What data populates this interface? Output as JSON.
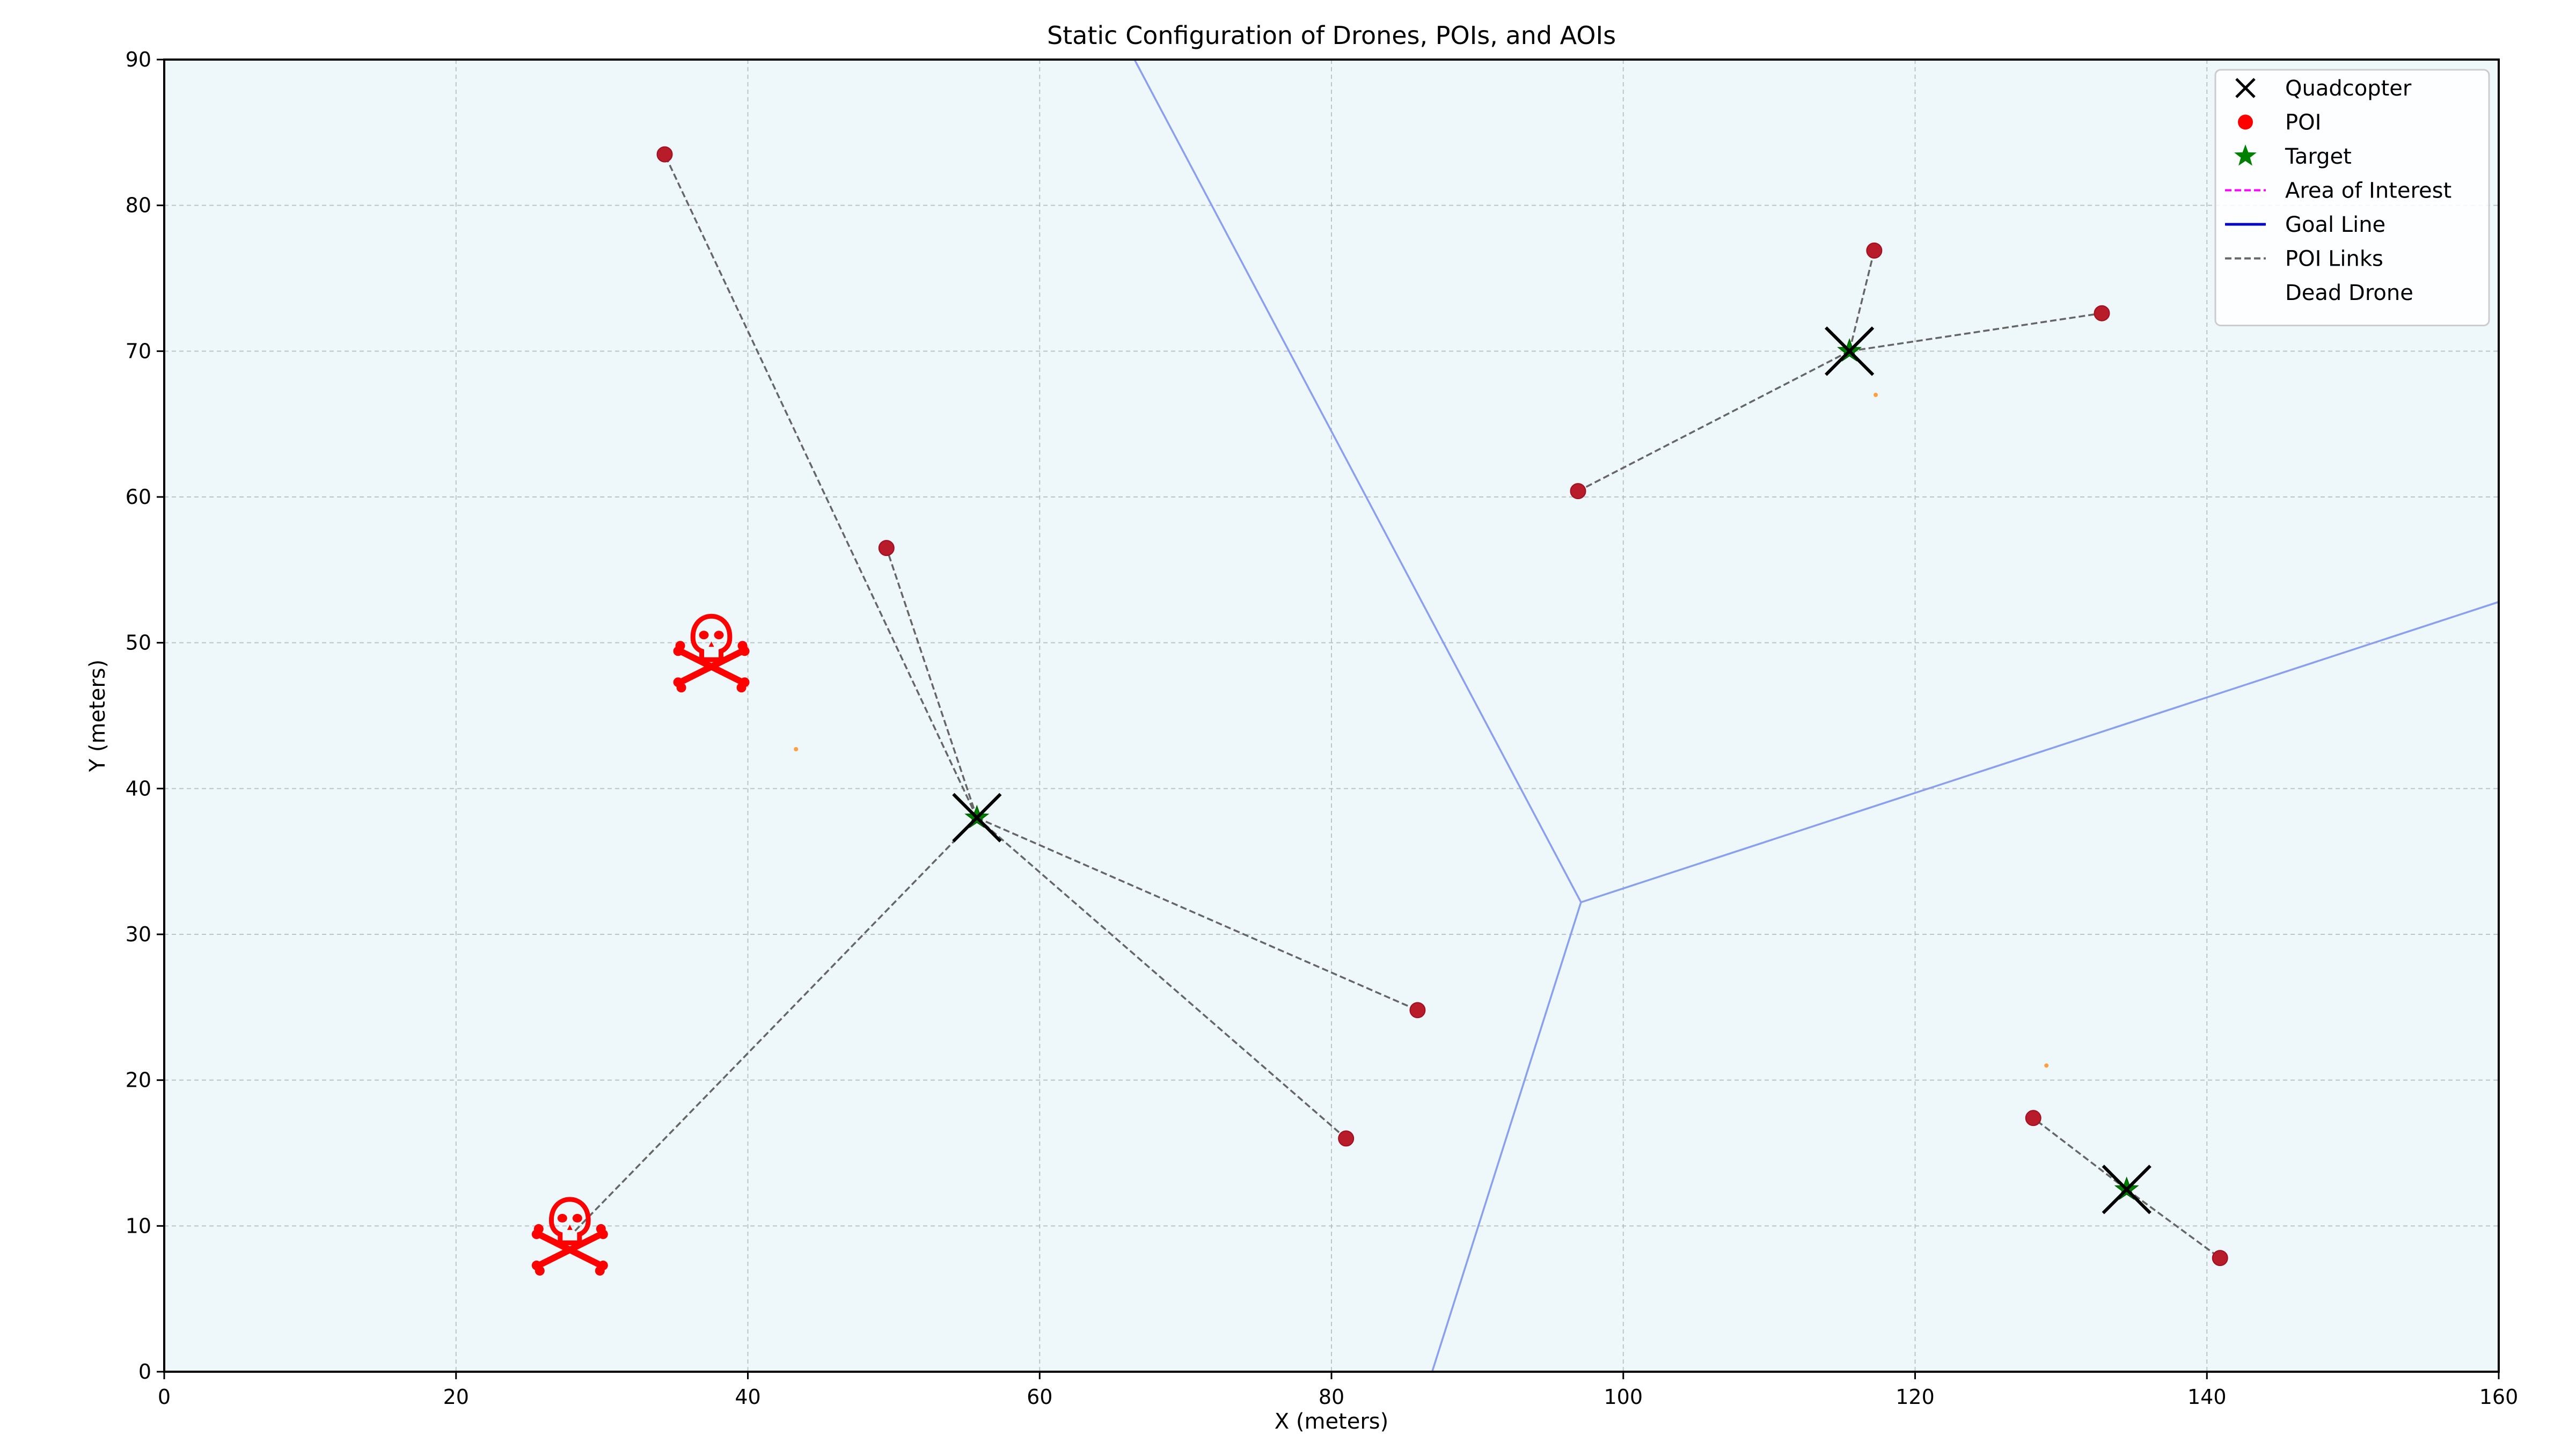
{
  "chart_data": {
    "type": "scatter",
    "title": "Static Configuration of Drones, POIs, and AOIs",
    "xlabel": "X (meters)",
    "ylabel": "Y (meters)",
    "xlim": [
      0,
      160
    ],
    "ylim": [
      0,
      90
    ],
    "xticks": [
      0,
      20,
      40,
      60,
      80,
      100,
      120,
      140,
      160
    ],
    "yticks": [
      0,
      10,
      20,
      30,
      40,
      50,
      60,
      70,
      80,
      90
    ],
    "grid": true,
    "legend_position": "top-right",
    "legend": [
      {
        "label": "Quadcopter",
        "marker": "x-mark",
        "color": "#000000"
      },
      {
        "label": "POI",
        "marker": "circle",
        "color": "#ff0000"
      },
      {
        "label": "Target",
        "marker": "star",
        "color": "#008000"
      },
      {
        "label": "Area of Interest",
        "marker": "dashed-line",
        "color": "#ff00ff"
      },
      {
        "label": "Goal Line",
        "marker": "solid-line",
        "color": "#0000cc"
      },
      {
        "label": "POI Links",
        "marker": "dashed-line",
        "color": "#666666"
      },
      {
        "label": "Dead Drone",
        "marker": "none",
        "color": "#ffffff"
      }
    ],
    "quadcopters": [
      {
        "x": 55.7,
        "y": 38.0
      },
      {
        "x": 115.5,
        "y": 70.0
      },
      {
        "x": 134.5,
        "y": 12.5
      }
    ],
    "targets": [
      {
        "x": 55.7,
        "y": 38.0
      },
      {
        "x": 115.5,
        "y": 70.0
      },
      {
        "x": 134.5,
        "y": 12.5
      }
    ],
    "pois": [
      {
        "x": 34.3,
        "y": 83.5
      },
      {
        "x": 49.5,
        "y": 56.5
      },
      {
        "x": 85.9,
        "y": 24.8
      },
      {
        "x": 81.0,
        "y": 16.0
      },
      {
        "x": 96.9,
        "y": 60.4
      },
      {
        "x": 117.2,
        "y": 76.9
      },
      {
        "x": 132.8,
        "y": 72.6
      },
      {
        "x": 128.1,
        "y": 17.4
      },
      {
        "x": 140.9,
        "y": 7.8
      }
    ],
    "poi_links": [
      {
        "from": [
          55.7,
          38.0
        ],
        "to": [
          34.3,
          83.5
        ]
      },
      {
        "from": [
          55.7,
          38.0
        ],
        "to": [
          49.5,
          56.5
        ]
      },
      {
        "from": [
          55.7,
          38.0
        ],
        "to": [
          85.9,
          24.8
        ]
      },
      {
        "from": [
          55.7,
          38.0
        ],
        "to": [
          81.0,
          16.0
        ]
      },
      {
        "from": [
          55.7,
          38.0
        ],
        "to": [
          28.0,
          9.5
        ]
      },
      {
        "from": [
          115.5,
          70.0
        ],
        "to": [
          96.9,
          60.4
        ]
      },
      {
        "from": [
          115.5,
          70.0
        ],
        "to": [
          117.2,
          76.9
        ]
      },
      {
        "from": [
          115.5,
          70.0
        ],
        "to": [
          132.8,
          72.6
        ]
      },
      {
        "from": [
          134.5,
          12.5
        ],
        "to": [
          128.1,
          17.4
        ]
      },
      {
        "from": [
          134.5,
          12.5
        ],
        "to": [
          140.9,
          7.8
        ]
      }
    ],
    "boundary_lines": [
      {
        "points": [
          [
            66.5,
            90
          ],
          [
            97.1,
            32.2
          ]
        ]
      },
      {
        "points": [
          [
            97.1,
            32.2
          ],
          [
            160,
            52.8
          ]
        ]
      },
      {
        "points": [
          [
            97.1,
            32.2
          ],
          [
            86.9,
            0
          ]
        ]
      }
    ],
    "dead_drones": [
      {
        "x": 37.5,
        "y": 49.5
      },
      {
        "x": 27.8,
        "y": 9.5
      }
    ],
    "small_markers": [
      {
        "x": 43.3,
        "y": 42.7
      },
      {
        "x": 117.3,
        "y": 67.0
      },
      {
        "x": 129.0,
        "y": 21.0
      }
    ],
    "colors": {
      "plot_background": "#eef7fa",
      "poi": "#b81c2a",
      "target": "#008000",
      "boundary": "#8a9ff0",
      "links": "#666666",
      "dead_drone": "#ff0000",
      "small_marker": "#ffa040"
    }
  }
}
